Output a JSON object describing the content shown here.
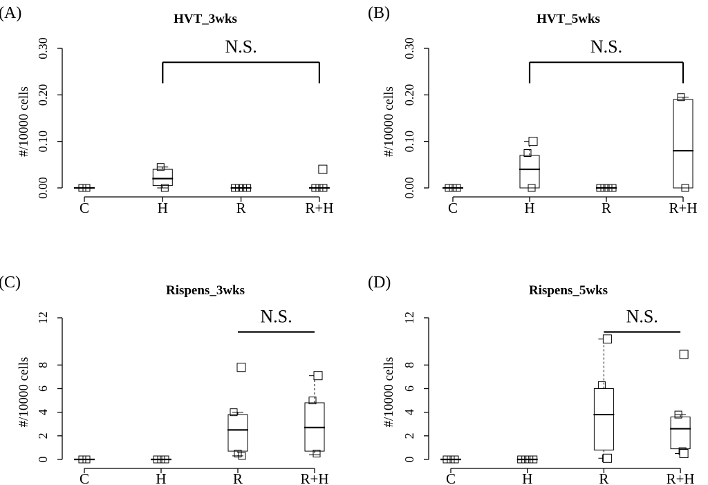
{
  "chart_data": [
    {
      "type": "box",
      "panel_label": "(A)",
      "title": "HVT_3wks",
      "xlabel": "",
      "ylabel": "#/10000 cells",
      "categories": [
        "C",
        "H",
        "R",
        "R+H"
      ],
      "yticks": [
        "0.00",
        "0.10",
        "0.20",
        "0.30"
      ],
      "ylim": [
        -0.012,
        0.31
      ],
      "grid": false,
      "boxes": [
        {
          "category": "C",
          "q1": 0,
          "median": 0,
          "q3": 0,
          "whisker_low": 0,
          "whisker_high": 0,
          "points": [
            0,
            0
          ],
          "outliers": []
        },
        {
          "category": "H",
          "q1": 0.005,
          "median": 0.02,
          "q3": 0.04,
          "whisker_low": 0.0,
          "whisker_high": 0.045,
          "points": [
            0.045,
            0.0
          ],
          "outliers": []
        },
        {
          "category": "R",
          "q1": 0,
          "median": 0,
          "q3": 0,
          "whisker_low": 0,
          "whisker_high": 0,
          "points": [
            0,
            0,
            0,
            0
          ],
          "outliers": []
        },
        {
          "category": "R+H",
          "q1": 0,
          "median": 0,
          "q3": 0,
          "whisker_low": 0,
          "whisker_high": 0,
          "points": [
            0,
            0,
            0
          ],
          "outliers": [
            0.04
          ]
        }
      ],
      "significance": {
        "label": "N.S.",
        "from": "H",
        "to": "R+H",
        "y": 0.27,
        "tick_down": 0.045
      }
    },
    {
      "type": "box",
      "panel_label": "(B)",
      "title": "HVT_5wks",
      "xlabel": "",
      "ylabel": "#/10000 cells",
      "categories": [
        "C",
        "H",
        "R",
        "R+H"
      ],
      "yticks": [
        "0.00",
        "0.10",
        "0.20",
        "0.30"
      ],
      "ylim": [
        -0.012,
        0.31
      ],
      "grid": false,
      "boxes": [
        {
          "category": "C",
          "q1": 0,
          "median": 0,
          "q3": 0,
          "whisker_low": 0,
          "whisker_high": 0,
          "points": [
            0,
            0,
            0
          ],
          "outliers": []
        },
        {
          "category": "H",
          "q1": 0.0,
          "median": 0.04,
          "q3": 0.07,
          "whisker_low": 0.0,
          "whisker_high": 0.1,
          "points": [
            0.075,
            0.0
          ],
          "outliers": [
            0.1
          ]
        },
        {
          "category": "R",
          "q1": 0,
          "median": 0,
          "q3": 0,
          "whisker_low": 0,
          "whisker_high": 0,
          "points": [
            0,
            0,
            0,
            0
          ],
          "outliers": []
        },
        {
          "category": "R+H",
          "q1": 0.0,
          "median": 0.08,
          "q3": 0.19,
          "whisker_low": 0.0,
          "whisker_high": 0.195,
          "points": [
            0.195,
            0.0
          ],
          "outliers": []
        }
      ],
      "significance": {
        "label": "N.S.",
        "from": "H",
        "to": "R+H",
        "y": 0.27,
        "tick_down": 0.045
      }
    },
    {
      "type": "box",
      "panel_label": "(C)",
      "title": "Rispens_3wks",
      "xlabel": "",
      "ylabel": "#/10000 cells",
      "categories": [
        "C",
        "H",
        "R",
        "R+H"
      ],
      "yticks": [
        "0",
        "2",
        "4",
        "6",
        "8",
        "12"
      ],
      "ylim": [
        -0.5,
        12.3
      ],
      "grid": false,
      "boxes": [
        {
          "category": "C",
          "q1": 0,
          "median": 0,
          "q3": 0,
          "whisker_low": 0,
          "whisker_high": 0,
          "points": [
            0,
            0
          ],
          "outliers": []
        },
        {
          "category": "H",
          "q1": 0,
          "median": 0,
          "q3": 0,
          "whisker_low": 0,
          "whisker_high": 0,
          "points": [
            0,
            0,
            0
          ],
          "outliers": []
        },
        {
          "category": "R",
          "q1": 0.7,
          "median": 2.5,
          "q3": 3.8,
          "whisker_low": 0.3,
          "whisker_high": 4.0,
          "points": [
            4.0,
            0.5,
            0.3
          ],
          "outliers": [
            7.8
          ]
        },
        {
          "category": "R+H",
          "q1": 0.7,
          "median": 2.7,
          "q3": 4.8,
          "whisker_low": 0.4,
          "whisker_high": 7.1,
          "points": [
            5.0,
            0.5
          ],
          "outliers": [
            7.1
          ]
        }
      ],
      "significance": {
        "label": "N.S.",
        "from": "R",
        "to": "R+H",
        "y": 10.8,
        "tick_down": 0
      }
    },
    {
      "type": "box",
      "panel_label": "(D)",
      "title": "Rispens_5wks",
      "xlabel": "",
      "ylabel": "#/10000 cells",
      "categories": [
        "C",
        "H",
        "R",
        "R+H"
      ],
      "yticks": [
        "0",
        "2",
        "4",
        "6",
        "8",
        "12"
      ],
      "ylim": [
        -0.5,
        12.3
      ],
      "grid": false,
      "boxes": [
        {
          "category": "C",
          "q1": 0,
          "median": 0,
          "q3": 0,
          "whisker_low": 0,
          "whisker_high": 0,
          "points": [
            0,
            0,
            0
          ],
          "outliers": []
        },
        {
          "category": "H",
          "q1": 0,
          "median": 0,
          "q3": 0,
          "whisker_low": 0,
          "whisker_high": 0,
          "points": [
            0,
            0,
            0,
            0
          ],
          "outliers": []
        },
        {
          "category": "R",
          "q1": 0.8,
          "median": 3.8,
          "q3": 6.0,
          "whisker_low": 0.1,
          "whisker_high": 10.2,
          "points": [
            6.3,
            0.1
          ],
          "outliers": [
            10.2,
            0.1
          ]
        },
        {
          "category": "R+H",
          "q1": 0.9,
          "median": 2.6,
          "q3": 3.6,
          "whisker_low": 0.5,
          "whisker_high": 3.8,
          "points": [
            3.8,
            0.7
          ],
          "outliers": [
            8.9,
            0.5
          ]
        }
      ],
      "significance": {
        "label": "N.S.",
        "from": "R",
        "to": "R+H",
        "y": 10.8,
        "tick_down": 0
      }
    }
  ]
}
